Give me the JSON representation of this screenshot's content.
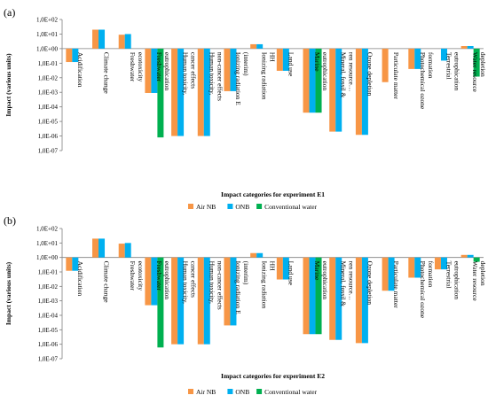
{
  "panels": [
    {
      "label": "(a)"
    },
    {
      "label": "(b)"
    }
  ],
  "colors": {
    "Air NB": "#f79646",
    "ONB": "#00b0f0",
    "Conventional water": "#00b050"
  },
  "chart_data": [
    {
      "type": "bar",
      "log_scale": true,
      "baseline": 1,
      "ylim": [
        1e-07,
        100
      ],
      "ylabel": "Impact (various units)",
      "xlabel": "Impact categories for experiment E1",
      "tick_labels": [
        "1,0E-07",
        "1,0E-06",
        "1,0E-05",
        "1,0E-04",
        "1,0E-03",
        "1,0E-02",
        "1,0E-01",
        "1,0E+00",
        "1,0E+01",
        "1,0E+02"
      ],
      "legend_position": "bottom",
      "categories": [
        "Acidification",
        "Climate change",
        "Freshwater ecotoxicity",
        "Freshwater eutrophication",
        "Human toxicity, cancer effects",
        "Human toxicity, non-cancer effects",
        "Ionizing radiation E (interim)",
        "Ionizing radiation HH",
        "Land use",
        "Marine eutrophication",
        "Mineral, fossil & ren resource…",
        "Ozone depletion",
        "Particulate matter",
        "Photochemical ozone formation",
        "Terrestrial eutrophication",
        "Water resource depletion"
      ],
      "series": [
        {
          "name": "Air NB",
          "values": [
            0.12,
            20,
            9,
            0.0009,
            1e-06,
            1e-06,
            0.0012,
            2,
            0.03,
            4e-05,
            2e-06,
            1.2e-06,
            0.005,
            0.04,
            null,
            1.5
          ]
        },
        {
          "name": "ONB",
          "values": [
            0.12,
            20,
            10,
            0.0009,
            1e-06,
            1e-06,
            0.0012,
            2,
            0.03,
            4e-05,
            2e-06,
            1.2e-06,
            null,
            0.04,
            0.15,
            1.5
          ]
        },
        {
          "name": "Conventional water",
          "values": [
            null,
            null,
            null,
            8e-07,
            null,
            null,
            null,
            null,
            null,
            4e-05,
            null,
            null,
            null,
            null,
            null,
            0.012
          ]
        }
      ]
    },
    {
      "type": "bar",
      "log_scale": true,
      "baseline": 1,
      "ylim": [
        1e-07,
        100
      ],
      "ylabel": "Impact (various units)",
      "xlabel": "Impact categories for experiment E2",
      "tick_labels": [
        "1,0E-07",
        "1,0E-06",
        "1,0E-05",
        "1,0E-04",
        "1,0E-03",
        "1,0E-02",
        "1,0E-01",
        "1,0E+00",
        "1,0E+01",
        "1,0E+02"
      ],
      "legend_position": "bottom",
      "categories": [
        "Acidification",
        "Climate change",
        "Freshwater ecotoxicity",
        "Freshwater eutrophication",
        "Human toxicity, cancer effects",
        "Human toxicity, non-cancer effects",
        "Ionizing radiation E (interim)",
        "Ionizing radiation HH",
        "Land use",
        "Marine eutrophication",
        "Mineral, fossil & ren resource…",
        "Ozone depletion",
        "Particulate matter",
        "Photochemical ozone formation",
        "Terrestrial eutrophication",
        "Water resource depletion"
      ],
      "series": [
        {
          "name": "Air NB",
          "values": [
            0.12,
            20,
            9,
            0.0005,
            1e-06,
            1e-06,
            2e-05,
            2,
            0.03,
            5e-06,
            2e-06,
            1.2e-06,
            0.005,
            0.04,
            0.15,
            1.5
          ]
        },
        {
          "name": "ONB",
          "values": [
            0.12,
            20,
            10,
            0.0005,
            1e-06,
            1e-06,
            2e-05,
            2,
            0.03,
            5e-06,
            2e-06,
            1.2e-06,
            0.005,
            0.04,
            0.15,
            1.5
          ]
        },
        {
          "name": "Conventional water",
          "values": [
            null,
            null,
            null,
            6e-07,
            null,
            null,
            null,
            null,
            null,
            5e-06,
            null,
            null,
            null,
            null,
            null,
            0.5
          ]
        }
      ]
    }
  ]
}
